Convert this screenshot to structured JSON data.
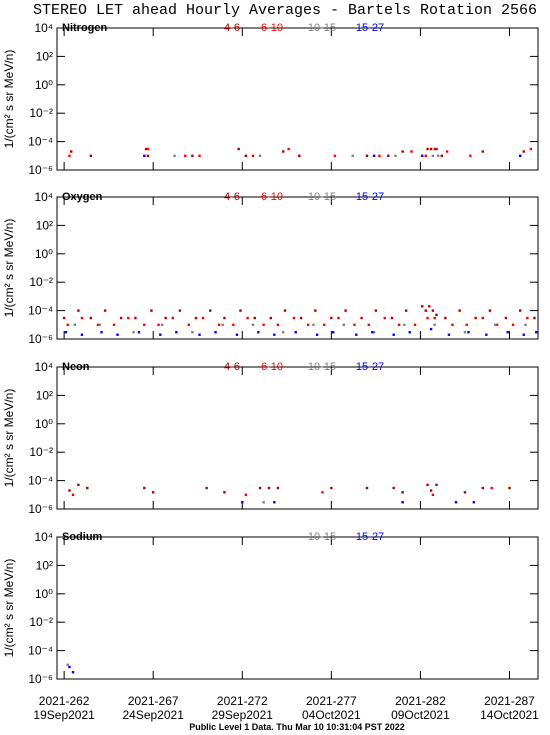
{
  "title": "STEREO LET ahead Hourly Averages - Bartels Rotation 2566",
  "footer": "Public Level 1 Data. Thu Mar 10 10:31:04 PST 2022",
  "chart_data": [
    {
      "type": "scatter",
      "title": "Nitrogen",
      "ylabel": "1/(cm² s sr MeV/n)",
      "log_y": true,
      "xlim": [
        261.6,
        288.6
      ],
      "xticks": [
        262,
        267,
        272,
        277,
        282,
        287
      ],
      "ylim": [
        1e-06,
        10000
      ],
      "yticks": [
        {
          "value": 1e-06,
          "label": "10⁻⁶"
        },
        {
          "value": 0.0001,
          "label": "10⁻⁴"
        },
        {
          "value": 0.01,
          "label": "10⁻²"
        },
        {
          "value": 1,
          "label": "10⁰"
        },
        {
          "value": 100,
          "label": "10²"
        },
        {
          "value": 10000,
          "label": "10⁴"
        }
      ],
      "series": [
        {
          "name": "4-6",
          "color": "#b00000",
          "x": [
            262.4,
            263.5,
            266.6,
            266.7,
            269.2,
            271.8,
            272.2,
            274.3,
            275.2,
            279.0,
            280.2,
            281.0,
            282.4,
            282.6,
            282.9,
            283.2,
            285.5,
            287.8
          ],
          "values": [
            2e-05,
            1e-05,
            3e-05,
            1e-05,
            1e-05,
            3e-05,
            1e-05,
            2e-05,
            1e-05,
            1e-05,
            1e-05,
            2e-05,
            3e-05,
            3e-05,
            3e-05,
            1e-05,
            2e-05,
            2e-05
          ]
        },
        {
          "name": "6-10",
          "color": "#ff0000",
          "x": [
            262.3,
            266.7,
            268.8,
            269.6,
            272.6,
            274.6,
            277.2,
            279.7,
            281.5,
            282.3,
            282.8,
            283.5,
            284.8,
            288.2
          ],
          "values": [
            1e-05,
            3e-05,
            1e-05,
            1e-05,
            1e-05,
            3e-05,
            1e-05,
            1e-05,
            2e-05,
            1e-05,
            3e-05,
            2e-05,
            1e-05,
            3e-05
          ]
        },
        {
          "name": "10-15",
          "color": "#808080",
          "x": [
            268.2,
            273.0,
            278.2,
            280.6,
            282.7,
            283.0
          ],
          "values": [
            1e-05,
            1e-05,
            1e-05,
            1e-05,
            1e-05,
            1e-05
          ]
        },
        {
          "name": "15-27",
          "color": "#0000ff",
          "x": [
            266.5,
            279.4,
            282.1,
            287.6
          ],
          "values": [
            1e-05,
            1e-05,
            1e-05,
            1e-05
          ]
        }
      ]
    },
    {
      "type": "scatter",
      "title": "Oxygen",
      "ylabel": "1/(cm² s sr MeV/n)",
      "log_y": true,
      "xlim": [
        261.6,
        288.6
      ],
      "xticks": [
        262,
        267,
        272,
        277,
        282,
        287
      ],
      "ylim": [
        1e-06,
        10000
      ],
      "yticks": [
        {
          "value": 1e-06,
          "label": "10⁻⁶"
        },
        {
          "value": 0.0001,
          "label": "10⁻⁴"
        },
        {
          "value": 0.01,
          "label": "10⁻²"
        },
        {
          "value": 1,
          "label": "10⁰"
        },
        {
          "value": 100,
          "label": "10²"
        },
        {
          "value": 10000,
          "label": "10⁴"
        }
      ],
      "series": [
        {
          "name": "4-6",
          "color": "#b00000",
          "x": [
            262.0,
            262.8,
            263.5,
            264.3,
            265.2,
            266.0,
            266.9,
            267.7,
            268.5,
            269.4,
            270.2,
            271.0,
            271.9,
            272.7,
            273.6,
            274.4,
            275.3,
            276.1,
            277.0,
            277.8,
            278.7,
            279.5,
            280.4,
            281.2,
            282.1,
            282.3,
            282.5,
            282.7,
            282.9,
            283.4,
            284.2,
            285.1,
            285.9,
            286.8,
            287.6,
            288.4
          ],
          "values": [
            3e-05,
            0.0001,
            3e-05,
            0.0001,
            3e-05,
            3e-05,
            0.0001,
            3e-05,
            0.0001,
            3e-05,
            0.0001,
            3e-05,
            0.0001,
            3e-05,
            3e-05,
            0.0001,
            3e-05,
            0.0001,
            3e-05,
            0.0001,
            3e-05,
            0.0001,
            3e-05,
            0.0001,
            0.0002,
            0.0001,
            0.0002,
            0.0001,
            5e-05,
            3e-05,
            0.0001,
            3e-05,
            0.0001,
            3e-05,
            0.0001,
            3e-05
          ]
        },
        {
          "name": "6-10",
          "color": "#ff0000",
          "x": [
            262.2,
            263.0,
            263.9,
            264.8,
            265.6,
            266.5,
            267.3,
            268.1,
            269.0,
            269.8,
            270.7,
            271.5,
            272.3,
            273.2,
            274.0,
            274.9,
            275.7,
            276.6,
            277.4,
            278.3,
            279.1,
            280.0,
            280.8,
            281.7,
            282.4,
            282.8,
            283.8,
            284.6,
            285.5,
            286.3,
            287.2,
            288.0
          ],
          "values": [
            1e-05,
            3e-05,
            1e-05,
            1e-05,
            3e-05,
            1e-05,
            1e-05,
            3e-05,
            1e-05,
            3e-05,
            1e-05,
            1e-05,
            3e-05,
            1e-05,
            1e-05,
            3e-05,
            1e-05,
            1e-05,
            3e-05,
            1e-05,
            1e-05,
            3e-05,
            1e-05,
            1e-05,
            3e-05,
            3e-05,
            1e-05,
            1e-05,
            3e-05,
            1e-05,
            1e-05,
            3e-05
          ]
        },
        {
          "name": "10-15",
          "color": "#808080",
          "x": [
            262.6,
            264.0,
            265.9,
            267.5,
            269.2,
            270.9,
            272.6,
            274.3,
            276.0,
            277.7,
            279.4,
            281.1,
            282.8,
            284.5,
            286.2,
            287.9
          ],
          "values": [
            1e-05,
            1e-05,
            3e-06,
            1e-05,
            3e-06,
            1e-05,
            1e-05,
            3e-06,
            1e-05,
            1e-05,
            3e-06,
            1e-05,
            1e-05,
            3e-06,
            1e-05,
            1e-05
          ]
        },
        {
          "name": "15-27",
          "color": "#0000ff",
          "x": [
            262.1,
            263.0,
            264.1,
            265.0,
            266.2,
            267.4,
            268.3,
            269.6,
            270.5,
            271.7,
            272.9,
            273.8,
            275.0,
            276.2,
            277.1,
            278.4,
            279.3,
            280.5,
            281.4,
            282.6,
            283.6,
            284.7,
            285.7,
            286.9,
            287.8,
            288.5
          ],
          "values": [
            3e-06,
            2e-06,
            3e-06,
            2e-06,
            3e-06,
            2e-06,
            3e-06,
            2e-06,
            3e-06,
            2e-06,
            3e-06,
            2e-06,
            3e-06,
            2e-06,
            3e-06,
            2e-06,
            3e-06,
            2e-06,
            3e-06,
            5e-06,
            2e-06,
            3e-06,
            2e-06,
            3e-06,
            2e-06,
            3e-06
          ]
        }
      ]
    },
    {
      "type": "scatter",
      "title": "Neon",
      "ylabel": "1/(cm² s sr MeV/n)",
      "log_y": true,
      "xlim": [
        261.6,
        288.6
      ],
      "xticks": [
        262,
        267,
        272,
        277,
        282,
        287
      ],
      "ylim": [
        1e-06,
        10000
      ],
      "yticks": [
        {
          "value": 1e-06,
          "label": "10⁻⁶"
        },
        {
          "value": 0.0001,
          "label": "10⁻⁴"
        },
        {
          "value": 0.01,
          "label": "10⁻²"
        },
        {
          "value": 1,
          "label": "10⁰"
        },
        {
          "value": 100,
          "label": "10²"
        },
        {
          "value": 10000,
          "label": "10⁴"
        }
      ],
      "series": [
        {
          "name": "4-6",
          "color": "#b00000",
          "x": [
            262.3,
            262.8,
            263.3,
            266.5,
            267.0,
            270.0,
            271.0,
            273.0,
            273.5,
            274.0,
            277.0,
            279.0,
            280.5,
            281.0,
            282.4,
            282.6,
            282.9,
            284.5,
            285.5,
            287.0
          ],
          "values": [
            2e-05,
            5e-05,
            3e-05,
            3e-05,
            1.5e-05,
            3e-05,
            1.5e-05,
            3e-05,
            3e-05,
            3e-05,
            3e-05,
            3e-05,
            3e-05,
            1.5e-05,
            5e-05,
            2e-05,
            5e-05,
            1.5e-05,
            3e-05,
            3e-05
          ]
        },
        {
          "name": "6-10",
          "color": "#ff0000",
          "x": [
            262.5,
            272.2,
            276.5,
            282.7,
            286.0
          ],
          "values": [
            1e-05,
            1e-05,
            1.5e-05,
            1e-05,
            3e-05
          ]
        },
        {
          "name": "10-15",
          "color": "#808080",
          "x": [
            273.2
          ],
          "values": [
            3e-06
          ]
        },
        {
          "name": "15-27",
          "color": "#0000ff",
          "x": [
            272.0,
            273.8,
            281.0,
            284.0,
            285.0
          ],
          "values": [
            3e-06,
            3e-06,
            3e-06,
            3e-06,
            3e-06
          ]
        }
      ]
    },
    {
      "type": "scatter",
      "title": "Sodium",
      "ylabel": "1/(cm² s sr MeV/n)",
      "log_y": true,
      "xlim": [
        261.6,
        288.6
      ],
      "xticks": [
        {
          "value": 262,
          "label": "2021-262"
        },
        {
          "value": 267,
          "label": "2021-267"
        },
        {
          "value": 272,
          "label": "2021-272"
        },
        {
          "value": 277,
          "label": "2021-277"
        },
        {
          "value": 282,
          "label": "2021-282"
        },
        {
          "value": 287,
          "label": "2021-287"
        }
      ],
      "xtick_dates": [
        "19Sep2021",
        "24Sep2021",
        "29Sep2021",
        "04Oct2021",
        "09Oct2021",
        "14Oct2021"
      ],
      "ylim": [
        1e-06,
        10000
      ],
      "yticks": [
        {
          "value": 1e-06,
          "label": "10⁻⁶"
        },
        {
          "value": 0.0001,
          "label": "10⁻⁴"
        },
        {
          "value": 0.01,
          "label": "10⁻²"
        },
        {
          "value": 1,
          "label": "10⁰"
        },
        {
          "value": 100,
          "label": "10²"
        },
        {
          "value": 10000,
          "label": "10⁴"
        }
      ],
      "series": [
        {
          "name": "10-15",
          "color": "#808080",
          "x": [
            262.2
          ],
          "values": [
            1e-05
          ]
        },
        {
          "name": "15-27",
          "color": "#0000ff",
          "x": [
            262.3,
            262.5
          ],
          "values": [
            7e-06,
            3e-06
          ]
        }
      ]
    }
  ]
}
